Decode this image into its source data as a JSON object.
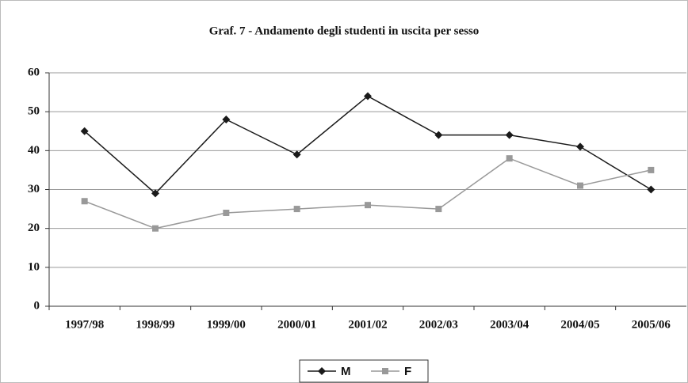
{
  "chart_data": {
    "type": "line",
    "title": "Graf. 7 - Andamento degli studenti in uscita per sesso",
    "categories": [
      "1997/98",
      "1998/99",
      "1999/00",
      "2000/01",
      "2001/02",
      "2002/03",
      "2003/04",
      "2004/05",
      "2005/06"
    ],
    "series": [
      {
        "name": "M",
        "color": "#1a1a1a",
        "marker": "diamond",
        "values": [
          45,
          29,
          48,
          39,
          54,
          44,
          44,
          41,
          30
        ]
      },
      {
        "name": "F",
        "color": "#999999",
        "marker": "square",
        "values": [
          27,
          20,
          24,
          25,
          26,
          25,
          38,
          31,
          35
        ]
      }
    ],
    "ylim": [
      0,
      60
    ],
    "yticks": [
      0,
      10,
      20,
      30,
      40,
      50,
      60
    ],
    "grid": true,
    "legend": "bottom"
  }
}
